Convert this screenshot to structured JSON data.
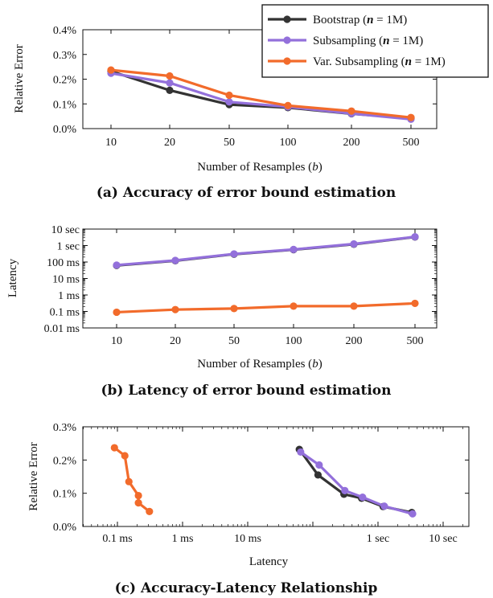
{
  "colors": {
    "Bootstrap": "#333333",
    "Subsampling": "#9370db",
    "Var. Subsampling": "#f26b2b"
  },
  "legend": {
    "placement": "top-right",
    "entries": [
      "Bootstrap (n = 1M)",
      "Subsampling (n = 1M)",
      "Var. Subsampling (n = 1M)"
    ]
  },
  "chart_data": [
    {
      "type": "line",
      "caption": "(a) Accuracy of error bound estimation",
      "xlabel": "Number of Resamples (b)",
      "ylabel": "Relative Error",
      "categories": [
        "10",
        "20",
        "50",
        "100",
        "200",
        "500"
      ],
      "yticks": [
        "0.0%",
        "0.1%",
        "0.2%",
        "0.3%",
        "0.4%"
      ],
      "ylim": [
        0,
        0.4
      ],
      "grid": false,
      "series": [
        {
          "name": "Bootstrap",
          "values": [
            0.232,
            0.155,
            0.097,
            0.085,
            0.06,
            0.042
          ]
        },
        {
          "name": "Subsampling",
          "values": [
            0.224,
            0.185,
            0.108,
            0.088,
            0.061,
            0.038
          ]
        },
        {
          "name": "Var. Subsampling",
          "values": [
            0.237,
            0.213,
            0.135,
            0.093,
            0.071,
            0.045
          ]
        }
      ]
    },
    {
      "type": "line",
      "caption": "(b) Latency of error bound estimation",
      "xlabel": "Number of Resamples (b)",
      "ylabel": "Latency",
      "yscale": "log",
      "categories": [
        "10",
        "20",
        "50",
        "100",
        "200",
        "500"
      ],
      "yticks": [
        "0.01 ms",
        "0.1 ms",
        "1 ms",
        "10 ms",
        "100 ms",
        "1 sec",
        "10 sec"
      ],
      "ylim_ms": [
        0.01,
        10000
      ],
      "grid": false,
      "series": [
        {
          "name": "Bootstrap",
          "values_ms": [
            62,
            120,
            300,
            560,
            1200,
            3300
          ]
        },
        {
          "name": "Subsampling",
          "values_ms": [
            65,
            125,
            310,
            580,
            1250,
            3400
          ]
        },
        {
          "name": "Var. Subsampling",
          "values_ms": [
            0.09,
            0.13,
            0.15,
            0.21,
            0.21,
            0.31
          ]
        }
      ]
    },
    {
      "type": "scatter",
      "caption": "(c) Accuracy-Latency Relationship",
      "xlabel": "Latency",
      "ylabel": "Relative Error",
      "xscale": "log",
      "xticks": [
        "0.1 ms",
        "1 ms",
        "10 ms",
        "1 sec",
        "10 sec"
      ],
      "yticks": [
        "0.0%",
        "0.1%",
        "0.2%",
        "0.3%"
      ],
      "ylim": [
        0,
        0.3
      ],
      "grid": false,
      "series": [
        {
          "name": "Bootstrap",
          "x_ms": [
            62,
            120,
            300,
            560,
            1200,
            3300
          ],
          "y": [
            0.232,
            0.155,
            0.097,
            0.085,
            0.06,
            0.042
          ]
        },
        {
          "name": "Subsampling",
          "x_ms": [
            65,
            125,
            310,
            580,
            1250,
            3400
          ],
          "y": [
            0.224,
            0.185,
            0.108,
            0.088,
            0.061,
            0.038
          ]
        },
        {
          "name": "Var. Subsampling",
          "x_ms": [
            0.09,
            0.13,
            0.15,
            0.21,
            0.21,
            0.31
          ],
          "y": [
            0.237,
            0.213,
            0.135,
            0.093,
            0.071,
            0.045
          ]
        }
      ]
    }
  ]
}
